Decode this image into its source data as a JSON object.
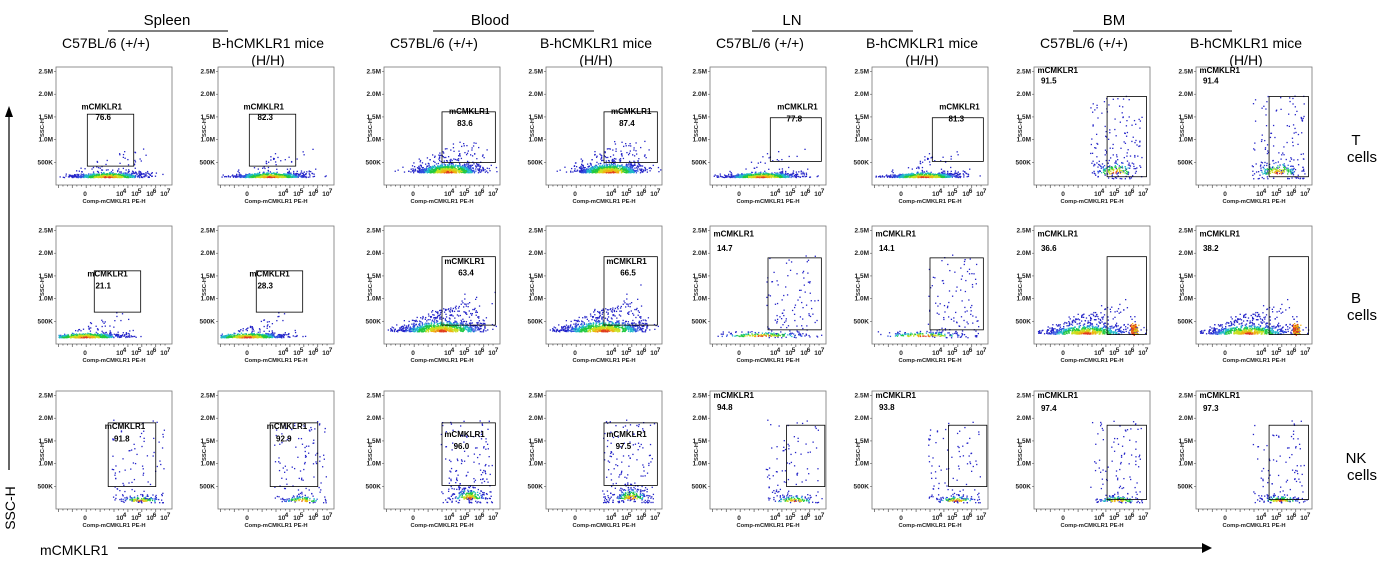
{
  "tissues": [
    "Spleen",
    "Blood",
    "LN",
    "BM"
  ],
  "strain_labels": [
    "C57BL/6 (+/+)",
    "B-hCMKLR1 mice\n(H/H)"
  ],
  "cell_types": [
    "T\ncells",
    "B\ncells",
    "NK\ncells"
  ],
  "axes": {
    "y_title": "SSC-H",
    "x_title": "mCMKLR1",
    "panel_y_label": "SSC-H",
    "panel_x_label": "Comp-mCMKLR1 PE-H",
    "y_ticks": [
      "2.5M",
      "2.0M",
      "1.5M",
      "1.0M",
      "500K"
    ],
    "x_ticks": [
      "0",
      "10",
      "4",
      "10",
      "5",
      "10",
      "6",
      "10",
      "7"
    ]
  },
  "colors": {
    "density_low": "#2a2ad8",
    "density_mid": "#2ad02a",
    "density_high": "#f0e020",
    "density_peak": "#e03020",
    "gate": "#000000"
  },
  "chart_data": {
    "type": "scatter",
    "description_of_axes": {
      "x": "Comp-mCMKLR1 PE-H (log)",
      "y": "SSC-H",
      "ylim": [
        0,
        2500000
      ]
    },
    "gate_label": "mCMKLR1",
    "panels": [
      {
        "row": 0,
        "col": 0,
        "tissue": "Spleen",
        "strain": "C57BL/6 (+/+)",
        "cell": "T cells",
        "value": "76.6"
      },
      {
        "row": 0,
        "col": 1,
        "tissue": "Spleen",
        "strain": "B-hCMKLR1 mice (H/H)",
        "cell": "T cells",
        "value": "82.3"
      },
      {
        "row": 0,
        "col": 2,
        "tissue": "Blood",
        "strain": "C57BL/6 (+/+)",
        "cell": "T cells",
        "value": "83.6"
      },
      {
        "row": 0,
        "col": 3,
        "tissue": "Blood",
        "strain": "B-hCMKLR1 mice (H/H)",
        "cell": "T cells",
        "value": "87.4"
      },
      {
        "row": 0,
        "col": 4,
        "tissue": "LN",
        "strain": "C57BL/6 (+/+)",
        "cell": "T cells",
        "value": "77.8"
      },
      {
        "row": 0,
        "col": 5,
        "tissue": "LN",
        "strain": "B-hCMKLR1 mice (H/H)",
        "cell": "T cells",
        "value": "81.3"
      },
      {
        "row": 0,
        "col": 6,
        "tissue": "BM",
        "strain": "C57BL/6 (+/+)",
        "cell": "T cells",
        "value": "91.5"
      },
      {
        "row": 0,
        "col": 7,
        "tissue": "BM",
        "strain": "B-hCMKLR1 mice (H/H)",
        "cell": "T cells",
        "value": "91.4"
      },
      {
        "row": 1,
        "col": 0,
        "tissue": "Spleen",
        "strain": "C57BL/6 (+/+)",
        "cell": "B cells",
        "value": "21.1"
      },
      {
        "row": 1,
        "col": 1,
        "tissue": "Spleen",
        "strain": "B-hCMKLR1 mice (H/H)",
        "cell": "B cells",
        "value": "28.3"
      },
      {
        "row": 1,
        "col": 2,
        "tissue": "Blood",
        "strain": "C57BL/6 (+/+)",
        "cell": "B cells",
        "value": "63.4"
      },
      {
        "row": 1,
        "col": 3,
        "tissue": "Blood",
        "strain": "B-hCMKLR1 mice (H/H)",
        "cell": "B cells",
        "value": "66.5"
      },
      {
        "row": 1,
        "col": 4,
        "tissue": "LN",
        "strain": "C57BL/6 (+/+)",
        "cell": "B cells",
        "value": "14.7"
      },
      {
        "row": 1,
        "col": 5,
        "tissue": "LN",
        "strain": "B-hCMKLR1 mice (H/H)",
        "cell": "B cells",
        "value": "14.1"
      },
      {
        "row": 1,
        "col": 6,
        "tissue": "BM",
        "strain": "C57BL/6 (+/+)",
        "cell": "B cells",
        "value": "36.6"
      },
      {
        "row": 1,
        "col": 7,
        "tissue": "BM",
        "strain": "B-hCMKLR1 mice (H/H)",
        "cell": "B cells",
        "value": "38.2"
      },
      {
        "row": 2,
        "col": 0,
        "tissue": "Spleen",
        "strain": "C57BL/6 (+/+)",
        "cell": "NK cells",
        "value": "91.8"
      },
      {
        "row": 2,
        "col": 1,
        "tissue": "Spleen",
        "strain": "B-hCMKLR1 mice (H/H)",
        "cell": "NK cells",
        "value": "92.9"
      },
      {
        "row": 2,
        "col": 2,
        "tissue": "Blood",
        "strain": "C57BL/6 (+/+)",
        "cell": "NK cells",
        "value": "96.0"
      },
      {
        "row": 2,
        "col": 3,
        "tissue": "Blood",
        "strain": "B-hCMKLR1 mice (H/H)",
        "cell": "NK cells",
        "value": "97.5"
      },
      {
        "row": 2,
        "col": 4,
        "tissue": "LN",
        "strain": "C57BL/6 (+/+)",
        "cell": "NK cells",
        "value": "94.8"
      },
      {
        "row": 2,
        "col": 5,
        "tissue": "LN",
        "strain": "B-hCMKLR1 mice (H/H)",
        "cell": "NK cells",
        "value": "93.8"
      },
      {
        "row": 2,
        "col": 6,
        "tissue": "BM",
        "strain": "C57BL/6 (+/+)",
        "cell": "NK cells",
        "value": "97.4"
      },
      {
        "row": 2,
        "col": 7,
        "tissue": "BM",
        "strain": "B-hCMKLR1 mice (H/H)",
        "cell": "NK cells",
        "value": "97.3"
      }
    ]
  }
}
